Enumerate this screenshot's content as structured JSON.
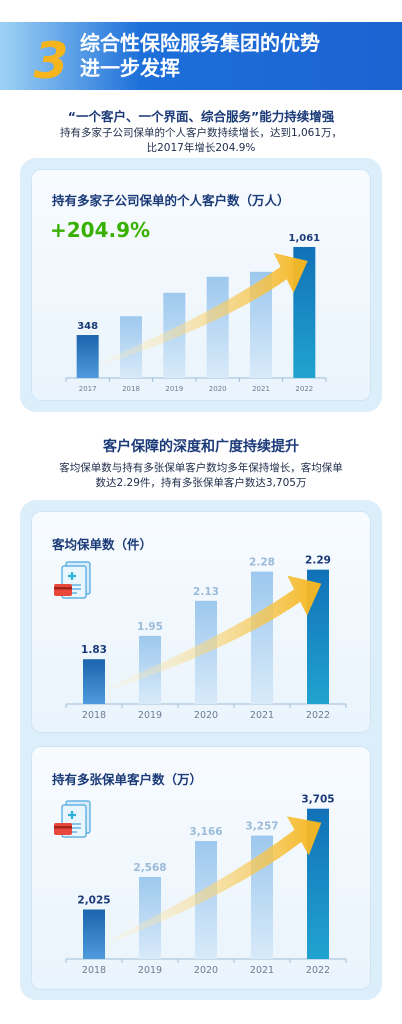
{
  "header": {
    "number": "3",
    "title_line1": "综合性保险服务集团的优势",
    "title_line2": "进一步发挥"
  },
  "section1": {
    "title": "“一个客户、一个界面、综合服务”能力持续增强",
    "desc_line1": "持有多家子公司保单的个人客户数持续增长，达到1,061万，",
    "desc_line2": "比2017年增长204.9%"
  },
  "section2": {
    "title": "客户保障的深度和广度持续提升",
    "desc_line1": "客均保单数与持有多张保单客户数均多年保持增长，客均保单",
    "desc_line2": "数达2.29件，持有多张保单客户数达3,705万"
  },
  "colors": {
    "bar_light": "#b5d3ef",
    "bar_dark": "#1c6fb0",
    "bar_last": "#1789c0",
    "arrow": "#f6b51c",
    "growth": "#38b000"
  },
  "chart_data": [
    {
      "type": "bar",
      "title": "持有多家子公司保单的个人客户数（万人）",
      "annotation": "+204.9%",
      "categories": [
        "2017",
        "2018",
        "2019",
        "2020",
        "2021",
        "2022"
      ],
      "values": [
        348,
        500,
        690,
        820,
        860,
        1061
      ],
      "value_labels": [
        "348",
        "",
        "",
        "",
        "",
        "1,061"
      ],
      "ylim": [
        0,
        1150
      ]
    },
    {
      "type": "bar",
      "title": "客均保单数（件）",
      "categories": [
        "2018",
        "2019",
        "2020",
        "2021",
        "2022"
      ],
      "values": [
        1.83,
        1.95,
        2.13,
        2.28,
        2.29
      ],
      "value_labels": [
        "1.83",
        "1.95",
        "2.13",
        "2.28",
        "2.29"
      ],
      "ylim": [
        1.6,
        2.35
      ]
    },
    {
      "type": "bar",
      "title": "持有多张保单客户数（万）",
      "categories": [
        "2018",
        "2019",
        "2020",
        "2021",
        "2022"
      ],
      "values": [
        2025,
        2568,
        3166,
        3257,
        3705
      ],
      "value_labels": [
        "2,025",
        "2,568",
        "3,166",
        "3,257",
        "3,705"
      ],
      "ylim": [
        1200,
        3900
      ]
    }
  ]
}
